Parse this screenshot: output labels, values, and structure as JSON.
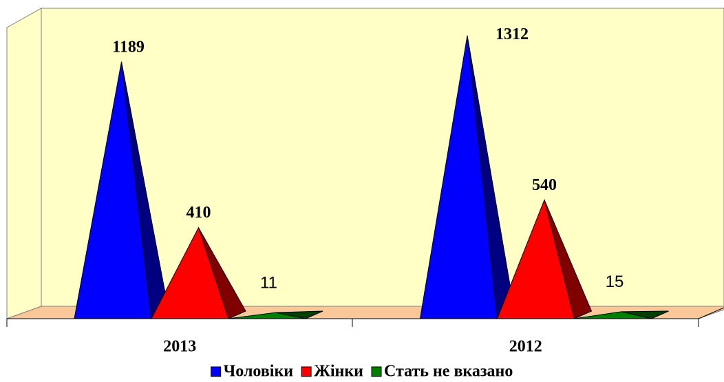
{
  "chart_data": {
    "type": "pyramid3d",
    "categories": [
      "2013",
      "2012"
    ],
    "series": [
      {
        "name": "Чоловіки",
        "color": "#0000ff",
        "values": [
          1189,
          1312
        ]
      },
      {
        "name": "Жінки",
        "color": "#ff0000",
        "values": [
          410,
          540
        ]
      },
      {
        "name": "Стать не вказано",
        "color": "#008000",
        "values": [
          11,
          15
        ]
      }
    ],
    "ylim": [
      0,
      1400
    ]
  }
}
